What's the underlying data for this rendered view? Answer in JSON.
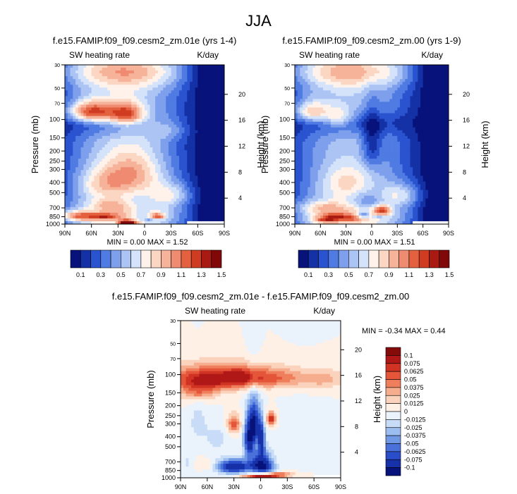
{
  "figure_title": "JJA",
  "colors": {
    "positive_ramp": [
      "#fff0e6",
      "#fbd3bd",
      "#f6ad8e",
      "#ef7f5c",
      "#e4553a",
      "#d03323",
      "#b01818",
      "#850b0b"
    ],
    "negative_ramp": [
      "#eaf2fc",
      "#c8dcf7",
      "#9cbdef",
      "#7098e5",
      "#4a70d9",
      "#2a4dc9",
      "#1731a8",
      "#07137a"
    ],
    "rate_ramp": [
      "#07137a",
      "#1431a6",
      "#2a53cf",
      "#4f7be2",
      "#7ea0ec",
      "#acc4f4",
      "#d4e3fa",
      "#fff2ea",
      "#fbd6c2",
      "#f6b39a",
      "#ef8b70",
      "#e4613f",
      "#d03c22",
      "#a81a12",
      "#800808"
    ]
  },
  "chart_data": [
    {
      "type": "heatmap",
      "id": "panel-1",
      "title": "f.e15.FAMIP.f09_f09.cesm2_zm.01e (yrs 1-4)",
      "left_string": "SW heating rate",
      "right_string": "K/day",
      "xlabel": "",
      "ylabel": "Pressure (mb)",
      "y2label": "Height (km)",
      "x_ticks": [
        "90N",
        "60N",
        "30N",
        "0",
        "30S",
        "60S",
        "90S"
      ],
      "y_ticks": [
        "30",
        "50",
        "70",
        "100",
        "150",
        "200",
        "250",
        "300",
        "400",
        "500",
        "700",
        "850",
        "1000"
      ],
      "height_ticks": [
        "20",
        "16",
        "12",
        "8",
        "4"
      ],
      "xlim": [
        90,
        -90
      ],
      "ylim": [
        1000,
        30
      ],
      "stats": {
        "min_label": "MIN =",
        "min": "0.00",
        "max_label": "MAX =",
        "max": "1.52"
      },
      "colorbar": {
        "labels": [
          "0.1",
          "0.3",
          "0.5",
          "0.7",
          "0.9",
          "1.1",
          "1.3",
          "1.5"
        ]
      },
      "features": [
        {
          "lat": 60,
          "p": 85,
          "w": 25,
          "hp": 20,
          "v": 0.85
        },
        {
          "lat": 20,
          "p": 90,
          "w": 20,
          "hp": 22,
          "v": 0.75
        },
        {
          "lat": -25,
          "p": 120,
          "w": 25,
          "hp": 30,
          "v": 0.3
        },
        {
          "lat": 15,
          "p": 330,
          "w": 35,
          "hp": 160,
          "v": 0.45
        },
        {
          "lat": 50,
          "p": 420,
          "w": 30,
          "hp": 140,
          "v": 0.3
        },
        {
          "lat": -30,
          "p": 520,
          "w": 25,
          "hp": 130,
          "v": 0.35
        },
        {
          "lat": 5,
          "p": 610,
          "w": 22,
          "hp": 110,
          "v": -0.1
        },
        {
          "lat": 40,
          "p": 650,
          "w": 20,
          "hp": 80,
          "v": 0.2
        },
        {
          "lat": 75,
          "p": 840,
          "w": 20,
          "hp": 90,
          "v": 0.6
        },
        {
          "lat": 45,
          "p": 850,
          "w": 15,
          "hp": 60,
          "v": 0.45
        },
        {
          "lat": 20,
          "p": 960,
          "w": 10,
          "hp": 45,
          "v": 1.0
        },
        {
          "lat": -15,
          "p": 840,
          "w": 8,
          "hp": 50,
          "v": 0.55
        },
        {
          "lat": 5,
          "p": 800,
          "w": 12,
          "hp": 120,
          "v": -0.2
        },
        {
          "lat": -5,
          "p": 920,
          "w": 8,
          "hp": 40,
          "v": -0.25
        },
        {
          "lat": 33,
          "p": 950,
          "w": 7,
          "hp": 30,
          "v": -0.2
        }
      ]
    },
    {
      "type": "heatmap",
      "id": "panel-2",
      "title": "f.e15.FAMIP.f09_f09.cesm2_zm.00 (yrs 1-9)",
      "left_string": "SW heating rate",
      "right_string": "K/day",
      "xlabel": "",
      "ylabel": "Pressure (mb)",
      "y2label": "Height (km)",
      "x_ticks": [
        "90N",
        "60N",
        "30N",
        "0",
        "30S",
        "60S",
        "90S"
      ],
      "y_ticks": [
        "30",
        "50",
        "70",
        "100",
        "150",
        "200",
        "250",
        "300",
        "400",
        "500",
        "700",
        "850",
        "1000"
      ],
      "height_ticks": [
        "20",
        "16",
        "12",
        "8",
        "4"
      ],
      "xlim": [
        90,
        -90
      ],
      "ylim": [
        1000,
        30
      ],
      "stats": {
        "min_label": "MIN =",
        "min": "0.00",
        "max_label": "MAX =",
        "max": "1.51"
      },
      "colorbar": {
        "labels": [
          "0.1",
          "0.3",
          "0.5",
          "0.7",
          "0.9",
          "1.1",
          "1.3",
          "1.5"
        ]
      },
      "features": [
        {
          "lat": 70,
          "p": 85,
          "w": 20,
          "hp": 20,
          "v": 0.55
        },
        {
          "lat": 40,
          "p": 95,
          "w": 15,
          "hp": 20,
          "v": 0.35
        },
        {
          "lat": 0,
          "p": 170,
          "w": 12,
          "hp": 110,
          "v": -0.35
        },
        {
          "lat": 30,
          "p": 400,
          "w": 30,
          "hp": 140,
          "v": 0.3
        },
        {
          "lat": -35,
          "p": 520,
          "w": 25,
          "hp": 130,
          "v": 0.35
        },
        {
          "lat": 5,
          "p": 620,
          "w": 20,
          "hp": 130,
          "v": -0.3
        },
        {
          "lat": 60,
          "p": 700,
          "w": 25,
          "hp": 90,
          "v": 0.25
        },
        {
          "lat": -12,
          "p": 740,
          "w": 10,
          "hp": 80,
          "v": 0.6
        },
        {
          "lat": 45,
          "p": 860,
          "w": 20,
          "hp": 70,
          "v": 0.5
        },
        {
          "lat": 55,
          "p": 930,
          "w": 15,
          "hp": 50,
          "v": 0.4
        },
        {
          "lat": 20,
          "p": 880,
          "w": 12,
          "hp": 50,
          "v": 0.25
        },
        {
          "lat": 10,
          "p": 820,
          "w": 8,
          "hp": 60,
          "v": -0.45
        },
        {
          "lat": -8,
          "p": 850,
          "w": 6,
          "hp": 40,
          "v": -0.3
        }
      ]
    },
    {
      "type": "heatmap",
      "id": "panel-3",
      "title": "f.e15.FAMIP.f09_f09.cesm2_zm.01e - f.e15.FAMIP.f09_f09.cesm2_zm.00",
      "left_string": "SW heating rate",
      "right_string": "K/day",
      "xlabel": "",
      "ylabel": "Pressure (mb)",
      "y2label": "Height (km)",
      "x_ticks": [
        "90N",
        "60N",
        "30N",
        "0",
        "30S",
        "60S",
        "90S"
      ],
      "y_ticks": [
        "30",
        "50",
        "70",
        "100",
        "150",
        "200",
        "250",
        "300",
        "400",
        "500",
        "700",
        "850",
        "1000"
      ],
      "height_ticks": [
        "20",
        "16",
        "12",
        "8",
        "4"
      ],
      "xlim": [
        90,
        -90
      ],
      "ylim": [
        1000,
        30
      ],
      "stats": {
        "min_label": "MIN =",
        "min": "-0.34",
        "max_label": "MAX =",
        "max": "0.44"
      },
      "colorbar": {
        "labels": [
          "0.1",
          "0.075",
          "0.0625",
          "0.05",
          "0.0375",
          "0.025",
          "0.0125",
          "0",
          "-0.0125",
          "-0.025",
          "-0.0375",
          "-0.05",
          "-0.0625",
          "-0.075",
          "-0.1"
        ]
      },
      "features": [
        {
          "lat": 60,
          "p": 110,
          "w": 45,
          "hp": 30,
          "v": 0.08
        },
        {
          "lat": 20,
          "p": 105,
          "w": 25,
          "hp": 25,
          "v": 0.05
        },
        {
          "lat": -20,
          "p": 108,
          "w": 30,
          "hp": 25,
          "v": 0.045
        },
        {
          "lat": -70,
          "p": 110,
          "w": 25,
          "hp": 25,
          "v": 0.03
        },
        {
          "lat": 70,
          "p": 150,
          "w": 20,
          "hp": 30,
          "v": 0.04
        },
        {
          "lat": 7,
          "p": 300,
          "w": 6,
          "hp": 140,
          "v": -0.09
        },
        {
          "lat": 13,
          "p": 420,
          "w": 6,
          "hp": 180,
          "v": -0.09
        },
        {
          "lat": -1,
          "p": 420,
          "w": 4,
          "hp": 160,
          "v": -0.08
        },
        {
          "lat": 30,
          "p": 300,
          "w": 7,
          "hp": 60,
          "v": 0.06
        },
        {
          "lat": -12,
          "p": 270,
          "w": 5,
          "hp": 40,
          "v": 0.08
        },
        {
          "lat": 50,
          "p": 420,
          "w": 12,
          "hp": 120,
          "v": -0.02
        },
        {
          "lat": 70,
          "p": 300,
          "w": 10,
          "hp": 120,
          "v": -0.02
        },
        {
          "lat": -45,
          "p": 500,
          "w": 25,
          "hp": 250,
          "v": -0.006
        },
        {
          "lat": 0,
          "p": 640,
          "w": 12,
          "hp": 140,
          "v": -0.06
        },
        {
          "lat": 30,
          "p": 780,
          "w": 20,
          "hp": 120,
          "v": -0.1
        },
        {
          "lat": -3,
          "p": 790,
          "w": 12,
          "hp": 110,
          "v": -0.09
        },
        {
          "lat": 0,
          "p": 960,
          "w": 20,
          "hp": 35,
          "v": 0.09
        },
        {
          "lat": -20,
          "p": 930,
          "w": 18,
          "hp": 45,
          "v": 0.05
        },
        {
          "lat": 60,
          "p": 750,
          "w": 12,
          "hp": 80,
          "v": 0.02
        },
        {
          "lat": 82,
          "p": 720,
          "w": 6,
          "hp": 200,
          "v": -0.015
        }
      ]
    }
  ]
}
